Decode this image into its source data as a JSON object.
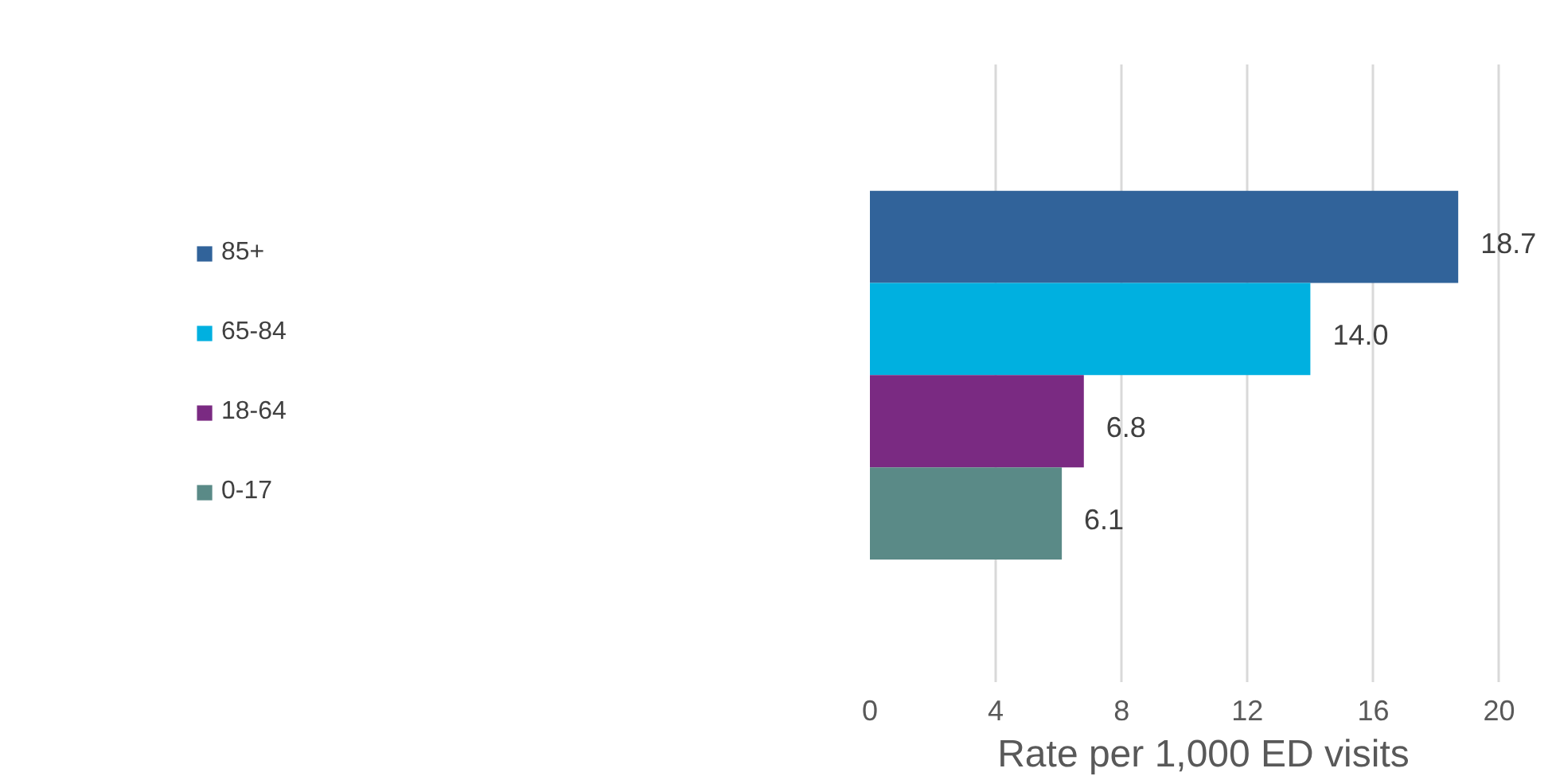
{
  "chart_data": {
    "type": "bar",
    "orientation": "horizontal",
    "categories": [
      null
    ],
    "xlabel": "Rate per 1,000 ED visits",
    "xlim": [
      0,
      20
    ],
    "xticks": [
      0,
      4,
      8,
      12,
      16,
      20
    ],
    "grid": "x",
    "legend": "left",
    "data_labels": true,
    "series": [
      {
        "name": "85+",
        "color": "#31639a",
        "values": [
          18.7
        ],
        "value_labels": [
          "18.7"
        ]
      },
      {
        "name": "65-84",
        "color": "#00b0e0",
        "values": [
          14.0
        ],
        "value_labels": [
          "14.0"
        ]
      },
      {
        "name": "18-64",
        "color": "#7a2a82",
        "values": [
          6.8
        ],
        "value_labels": [
          "6.8"
        ]
      },
      {
        "name": "0-17",
        "color": "#5a8a87",
        "values": [
          6.1
        ],
        "value_labels": [
          "6.1"
        ]
      }
    ]
  }
}
